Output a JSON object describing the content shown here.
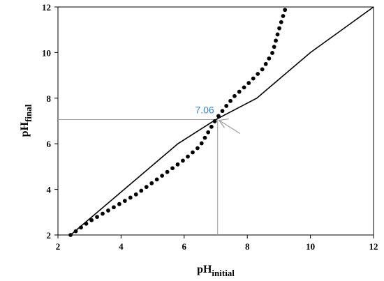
{
  "chart_data": {
    "type": "line",
    "xlim": [
      2,
      12
    ],
    "ylim": [
      2,
      12
    ],
    "xticks": [
      2,
      4,
      6,
      8,
      10,
      12
    ],
    "yticks": [
      2,
      4,
      6,
      8,
      10,
      12
    ],
    "xlabel": {
      "main": "pH",
      "sub": "initial"
    },
    "ylabel": {
      "main": "pH",
      "sub": "final"
    },
    "grid": false,
    "series": [
      {
        "style": "solid",
        "color": "#000000",
        "x": [
          2.4,
          5.8,
          7.0,
          8.3,
          10.0,
          12.0
        ],
        "y": [
          2.0,
          6.0,
          7.06,
          8.0,
          10.0,
          12.0
        ]
      },
      {
        "style": "dotted",
        "color": "#000000",
        "x": [
          2.4,
          3.0,
          4.0,
          4.5,
          5.0,
          5.5,
          6.0,
          6.5,
          7.0,
          7.3,
          7.6,
          8.0,
          8.5,
          8.8,
          9.0,
          9.2
        ],
        "y": [
          2.0,
          2.6,
          3.4,
          3.8,
          4.3,
          4.8,
          5.3,
          5.9,
          7.06,
          7.6,
          8.1,
          8.6,
          9.3,
          10.0,
          11.0,
          11.9
        ]
      }
    ],
    "annotations": [
      {
        "text": "7.06",
        "x": 7.06,
        "y": 7.06,
        "color": "#3a7fd5",
        "reference_lines": true,
        "reference_color": "#9e9e9e"
      }
    ]
  }
}
